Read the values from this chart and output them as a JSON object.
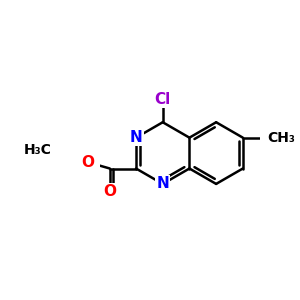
{
  "background": "#ffffff",
  "bond_color": "#000000",
  "bond_width": 1.8,
  "atom_colors": {
    "N": "#0000ff",
    "O": "#ff0000",
    "Cl": "#9900cc",
    "C": "#000000"
  },
  "font_size_atoms": 11,
  "font_size_groups": 10,
  "figsize": [
    3.0,
    3.0
  ],
  "dpi": 100
}
